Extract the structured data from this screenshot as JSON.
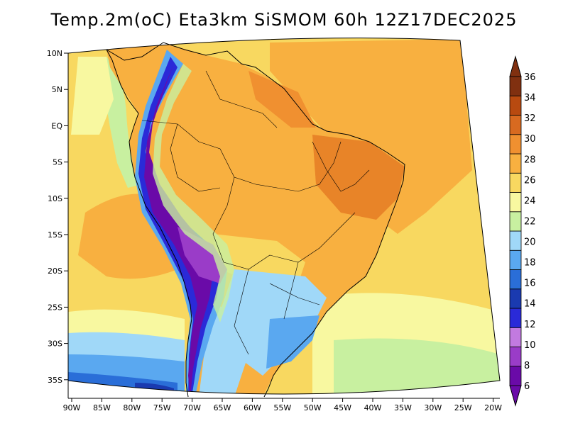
{
  "title": "Temp.2m(oC) Eta3km SiSMOM 60h 12Z17DEC2025",
  "map": {
    "lat_ticks": [
      "10N",
      "5N",
      "EQ",
      "5S",
      "10S",
      "15S",
      "20S",
      "25S",
      "30S",
      "35S"
    ],
    "lon_ticks": [
      "90W",
      "85W",
      "80W",
      "75W",
      "70W",
      "65W",
      "60W",
      "55W",
      "50W",
      "45W",
      "40W",
      "35W",
      "30W",
      "25W",
      "20W"
    ]
  },
  "colorbar": {
    "labels": [
      "6",
      "8",
      "10",
      "12",
      "14",
      "16",
      "18",
      "20",
      "22",
      "24",
      "26",
      "28",
      "30",
      "32",
      "34",
      "36"
    ],
    "colors": [
      "#6a0aa8",
      "#9a3cc8",
      "#c27ae0",
      "#2a2ad8",
      "#1a3ab0",
      "#2a6ed8",
      "#5aa8f0",
      "#a0d8f8",
      "#c8f0a0",
      "#f8f8a0",
      "#f8d860",
      "#f8b040",
      "#f09030",
      "#d86a20",
      "#b84a10",
      "#803010"
    ]
  }
}
